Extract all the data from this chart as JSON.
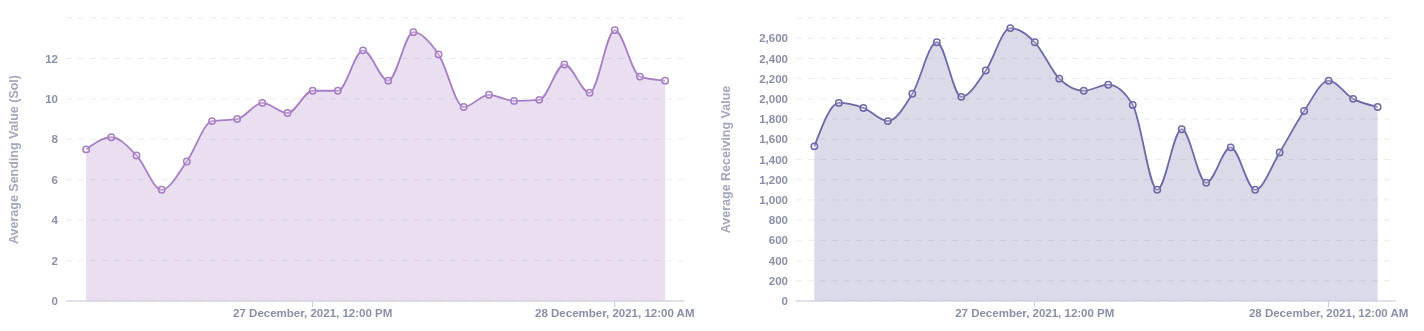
{
  "chart_data": [
    {
      "type": "area",
      "ylabel": "Average Sending Value (Sol)",
      "grid": "y",
      "marker": "circle",
      "legend": false,
      "x": [
        "2021-12-27T03:00",
        "2021-12-27T04:00",
        "2021-12-27T05:00",
        "2021-12-27T06:00",
        "2021-12-27T07:00",
        "2021-12-27T08:00",
        "2021-12-27T09:00",
        "2021-12-27T10:00",
        "2021-12-27T11:00",
        "2021-12-27T12:00",
        "2021-12-27T13:00",
        "2021-12-27T14:00",
        "2021-12-27T15:00",
        "2021-12-27T16:00",
        "2021-12-27T17:00",
        "2021-12-27T18:00",
        "2021-12-27T19:00",
        "2021-12-27T20:00",
        "2021-12-27T21:00",
        "2021-12-27T22:00",
        "2021-12-27T23:00",
        "2021-12-28T00:00",
        "2021-12-28T01:00",
        "2021-12-28T02:00"
      ],
      "series": [
        {
          "color": "#a77fc4",
          "values": [
            7.5,
            8.1,
            7.2,
            5.5,
            6.9,
            8.9,
            9.0,
            9.8,
            9.3,
            10.4,
            10.4,
            12.4,
            10.9,
            13.3,
            12.2,
            9.6,
            10.2,
            9.9,
            9.95,
            11.7,
            10.3,
            13.4,
            11.1,
            10.9
          ]
        }
      ],
      "xlim": [
        "2021-12-27T02:12",
        "2021-12-28T02:45"
      ],
      "xticks": [
        {
          "value": "2021-12-27T12:00",
          "label": "27 December, 2021, 12:00 PM"
        },
        {
          "value": "2021-12-28T00:00",
          "label": "28 December, 2021, 12:00 AM"
        }
      ],
      "ylim": [
        0,
        14
      ],
      "yticks": [
        0,
        2,
        4,
        6,
        8,
        10,
        12
      ]
    },
    {
      "type": "area",
      "ylabel": "Average Receiving Value",
      "grid": "y",
      "marker": "circle",
      "legend": false,
      "x": [
        "2021-12-27T03:00",
        "2021-12-27T04:00",
        "2021-12-27T05:00",
        "2021-12-27T06:00",
        "2021-12-27T07:00",
        "2021-12-27T08:00",
        "2021-12-27T09:00",
        "2021-12-27T10:00",
        "2021-12-27T11:00",
        "2021-12-27T12:00",
        "2021-12-27T13:00",
        "2021-12-27T14:00",
        "2021-12-27T15:00",
        "2021-12-27T16:00",
        "2021-12-27T17:00",
        "2021-12-27T18:00",
        "2021-12-27T19:00",
        "2021-12-27T20:00",
        "2021-12-27T21:00",
        "2021-12-27T22:00",
        "2021-12-27T23:00",
        "2021-12-28T00:00",
        "2021-12-28T01:00",
        "2021-12-28T02:00"
      ],
      "series": [
        {
          "color": "#6e6aa8",
          "values": [
            1530,
            1960,
            1910,
            1780,
            2050,
            2560,
            2020,
            2280,
            2700,
            2560,
            2200,
            2080,
            2140,
            1940,
            1100,
            1700,
            1170,
            1520,
            1100,
            1470,
            1880,
            2180,
            2000,
            1920
          ]
        }
      ],
      "xlim": [
        "2021-12-27T02:15",
        "2021-12-28T02:45"
      ],
      "xticks": [
        {
          "value": "2021-12-27T12:00",
          "label": "27 December, 2021, 12:00 PM"
        },
        {
          "value": "2021-12-28T00:00",
          "label": "28 December, 2021, 12:00 AM"
        }
      ],
      "ylim": [
        0,
        2800
      ],
      "yticks": [
        0,
        200,
        400,
        600,
        800,
        {
          "value": 1000,
          "label": "1,000"
        },
        {
          "value": 1200,
          "label": "1,200"
        },
        {
          "value": 1400,
          "label": "1,400"
        },
        {
          "value": 1600,
          "label": "1,600"
        },
        {
          "value": 1800,
          "label": "1,800"
        },
        {
          "value": 2000,
          "label": "2,000"
        },
        {
          "value": 2200,
          "label": "2,200"
        },
        {
          "value": 2400,
          "label": "2,400"
        },
        {
          "value": 2600,
          "label": "2,600"
        }
      ]
    }
  ]
}
